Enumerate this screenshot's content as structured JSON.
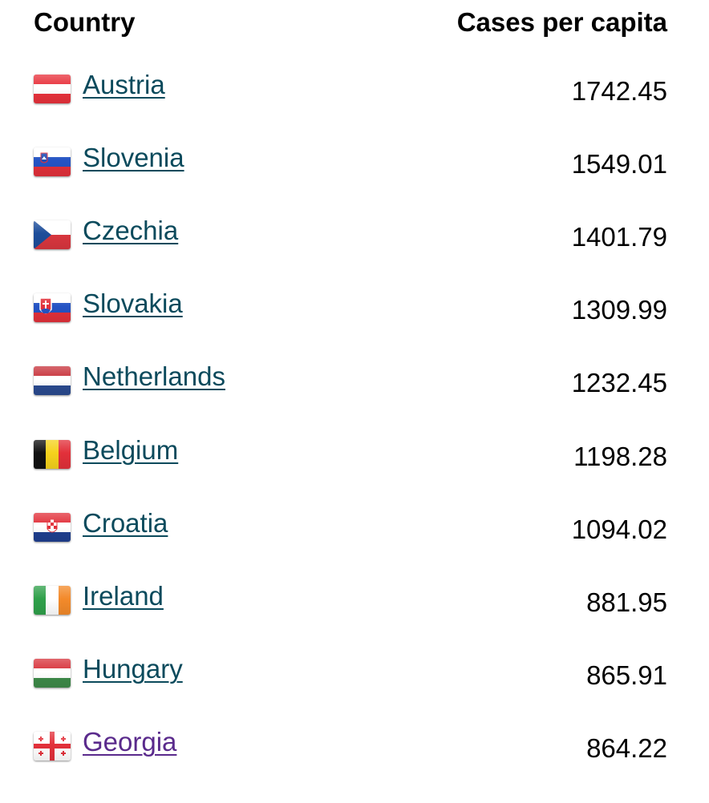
{
  "header": {
    "country_label": "Country",
    "cases_label": "Cases per capita"
  },
  "colors": {
    "link": "#0b4a5c",
    "visited_link": "#5a2a8c"
  },
  "rows": [
    {
      "country": "Austria",
      "value": "1742.45",
      "flag": "austria-flag-icon",
      "visited": false
    },
    {
      "country": "Slovenia",
      "value": "1549.01",
      "flag": "slovenia-flag-icon",
      "visited": false
    },
    {
      "country": "Czechia",
      "value": "1401.79",
      "flag": "czechia-flag-icon",
      "visited": false
    },
    {
      "country": "Slovakia",
      "value": "1309.99",
      "flag": "slovakia-flag-icon",
      "visited": false
    },
    {
      "country": "Netherlands",
      "value": "1232.45",
      "flag": "netherlands-flag-icon",
      "visited": false
    },
    {
      "country": "Belgium",
      "value": "1198.28",
      "flag": "belgium-flag-icon",
      "visited": false
    },
    {
      "country": "Croatia",
      "value": "1094.02",
      "flag": "croatia-flag-icon",
      "visited": false
    },
    {
      "country": "Ireland",
      "value": "881.95",
      "flag": "ireland-flag-icon",
      "visited": false
    },
    {
      "country": "Hungary",
      "value": "865.91",
      "flag": "hungary-flag-icon",
      "visited": false
    },
    {
      "country": "Georgia",
      "value": "864.22",
      "flag": "georgia-flag-icon",
      "visited": true
    }
  ]
}
